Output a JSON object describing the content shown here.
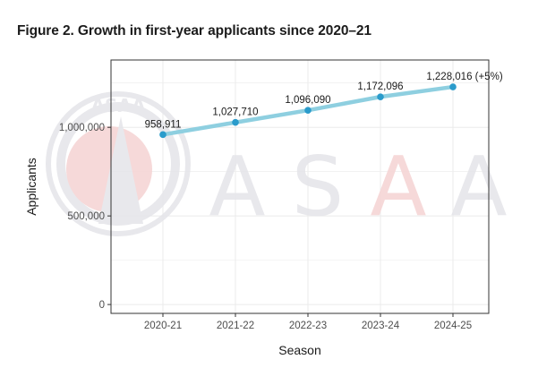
{
  "figure": {
    "title": "Figure 2. Growth in first-year applicants since 2020–21"
  },
  "watermark": {
    "text": "ASAA",
    "seal_text": "ASAA"
  },
  "colors": {
    "line": "#8ecfe0",
    "point": "#2a9bcb",
    "grid": "#ebebeb",
    "panel_border": "#333333",
    "watermark_grey": "#e6e6ea",
    "watermark_red": "#f6d5d5"
  },
  "chart_data": {
    "type": "line",
    "title": "Figure 2. Growth in first-year applicants since 2020–21",
    "xlabel": "Season",
    "ylabel": "Applicants",
    "categories": [
      "2020-21",
      "2021-22",
      "2022-23",
      "2023-24",
      "2024-25"
    ],
    "series": [
      {
        "name": "Applicants",
        "values": [
          958911,
          1027710,
          1096090,
          1172096,
          1228016
        ]
      }
    ],
    "data_labels": [
      "958,911",
      "1,027,710",
      "1,096,090",
      "1,172,096",
      "1,228,016 (+5%)"
    ],
    "yticks": [
      0,
      500000,
      1000000
    ],
    "ytick_labels": [
      "0",
      "500,000",
      "1,000,000"
    ],
    "ylim": [
      -50000,
      1380000
    ],
    "grid": true,
    "legend": "none"
  }
}
